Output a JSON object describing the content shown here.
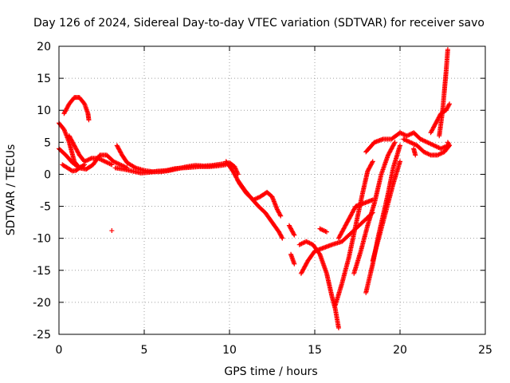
{
  "chart_data": {
    "type": "scatter",
    "title": "Day 126 of 2024, Sidereal Day-to-day VTEC variation (SDTVAR) for receiver savo",
    "xlabel": "GPS time / hours",
    "ylabel": "SDTVAR / TECUs",
    "xlim": [
      0,
      25
    ],
    "ylim": [
      -25,
      20
    ],
    "xticks": [
      "0",
      "5",
      "10",
      "15",
      "20",
      "25"
    ],
    "yticks": [
      "-25",
      "-20",
      "-15",
      "-10",
      "-5",
      "0",
      "5",
      "10",
      "15",
      "20"
    ],
    "grid": true,
    "marker": "plus",
    "color": "#ff0000",
    "series": [
      {
        "name": "arc-1",
        "points": [
          [
            0.0,
            8.0
          ],
          [
            0.3,
            7.0
          ],
          [
            0.6,
            5.0
          ],
          [
            0.9,
            2.0
          ],
          [
            1.2,
            1.0
          ],
          [
            1.5,
            1.5
          ]
        ]
      },
      {
        "name": "arc-2",
        "points": [
          [
            0.3,
            9.5
          ],
          [
            0.6,
            11.0
          ],
          [
            0.9,
            12.0
          ],
          [
            1.2,
            12.0
          ],
          [
            1.5,
            11.0
          ],
          [
            1.7,
            9.5
          ],
          [
            1.75,
            8.5
          ]
        ]
      },
      {
        "name": "arc-3",
        "points": [
          [
            0.0,
            4.0
          ],
          [
            0.4,
            3.0
          ],
          [
            0.8,
            1.8
          ],
          [
            1.2,
            1.0
          ],
          [
            1.6,
            0.8
          ],
          [
            2.0,
            1.5
          ],
          [
            2.4,
            3.0
          ],
          [
            2.8,
            3.0
          ],
          [
            3.2,
            2.0
          ],
          [
            3.6,
            1.5
          ],
          [
            4.0,
            1.0
          ]
        ]
      },
      {
        "name": "arc-4",
        "points": [
          [
            0.2,
            1.5
          ],
          [
            0.5,
            1.0
          ],
          [
            0.8,
            0.5
          ],
          [
            1.0,
            0.6
          ],
          [
            1.3,
            1.2
          ]
        ]
      },
      {
        "name": "arc-5",
        "points": [
          [
            0.6,
            6.0
          ],
          [
            0.9,
            4.5
          ],
          [
            1.2,
            3.0
          ],
          [
            1.5,
            2.0
          ],
          [
            1.9,
            2.5
          ],
          [
            2.3,
            2.5
          ],
          [
            2.7,
            2.0
          ],
          [
            3.1,
            1.5
          ]
        ]
      },
      {
        "name": "arc-6",
        "points": [
          [
            3.4,
            4.5
          ],
          [
            3.7,
            3.0
          ],
          [
            4.0,
            1.8
          ],
          [
            4.5,
            1.0
          ],
          [
            5.0,
            0.6
          ],
          [
            5.5,
            0.4
          ],
          [
            6.0,
            0.4
          ],
          [
            6.5,
            0.6
          ],
          [
            7.0,
            0.9
          ],
          [
            7.5,
            1.2
          ],
          [
            8.0,
            1.4
          ],
          [
            8.5,
            1.3
          ],
          [
            9.0,
            1.4
          ],
          [
            9.5,
            1.6
          ],
          [
            10.0,
            1.8
          ],
          [
            10.3,
            1.2
          ],
          [
            10.5,
            0.0
          ]
        ]
      },
      {
        "name": "arc-7",
        "points": [
          [
            3.3,
            1.0
          ],
          [
            3.8,
            0.8
          ],
          [
            4.3,
            0.5
          ],
          [
            4.8,
            0.2
          ],
          [
            5.3,
            0.3
          ],
          [
            5.8,
            0.5
          ],
          [
            6.3,
            0.6
          ],
          [
            6.8,
            0.9
          ],
          [
            7.3,
            1.0
          ],
          [
            7.8,
            1.1
          ],
          [
            8.3,
            1.2
          ],
          [
            8.8,
            1.2
          ],
          [
            9.3,
            1.3
          ],
          [
            9.8,
            1.5
          ]
        ]
      },
      {
        "name": "outlier",
        "points": [
          [
            3.1,
            -8.8
          ]
        ]
      },
      {
        "name": "arc-8",
        "points": [
          [
            9.8,
            2.0
          ],
          [
            10.2,
            0.5
          ],
          [
            10.6,
            -1.5
          ],
          [
            11.0,
            -3.0
          ],
          [
            11.4,
            -4.0
          ],
          [
            11.8,
            -3.5
          ],
          [
            12.2,
            -2.8
          ],
          [
            12.5,
            -3.5
          ],
          [
            12.8,
            -5.5
          ],
          [
            13.0,
            -6.5
          ]
        ]
      },
      {
        "name": "arc-9",
        "points": [
          [
            10.5,
            -1.0
          ],
          [
            10.9,
            -2.5
          ],
          [
            11.3,
            -3.8
          ],
          [
            11.7,
            -5.0
          ],
          [
            12.1,
            -6.0
          ],
          [
            12.5,
            -7.5
          ],
          [
            12.9,
            -9.0
          ],
          [
            13.1,
            -10.0
          ]
        ]
      },
      {
        "name": "arc-10",
        "points": [
          [
            13.5,
            -8.0
          ],
          [
            13.8,
            -9.5
          ]
        ]
      },
      {
        "name": "arc-11",
        "points": [
          [
            13.6,
            -12.5
          ],
          [
            13.8,
            -14.0
          ]
        ]
      },
      {
        "name": "arc-12",
        "points": [
          [
            14.1,
            -11.0
          ],
          [
            14.5,
            -10.5
          ],
          [
            14.9,
            -11.0
          ],
          [
            15.3,
            -12.5
          ],
          [
            15.7,
            -15.5
          ],
          [
            16.0,
            -19.0
          ],
          [
            16.2,
            -21.0
          ],
          [
            16.3,
            -22.5
          ],
          [
            16.4,
            -24.0
          ]
        ]
      },
      {
        "name": "arc-13",
        "points": [
          [
            14.2,
            -15.5
          ],
          [
            14.6,
            -13.5
          ],
          [
            15.0,
            -12.0
          ],
          [
            15.5,
            -11.5
          ],
          [
            16.0,
            -11.0
          ],
          [
            16.6,
            -10.5
          ],
          [
            17.2,
            -9.0
          ],
          [
            17.8,
            -7.5
          ],
          [
            18.4,
            -6.0
          ]
        ]
      },
      {
        "name": "arc-14",
        "points": [
          [
            15.3,
            -8.5
          ],
          [
            15.7,
            -9.0
          ]
        ]
      },
      {
        "name": "arc-15",
        "points": [
          [
            16.2,
            -20.5
          ],
          [
            16.6,
            -17.0
          ],
          [
            17.0,
            -13.0
          ],
          [
            17.4,
            -8.0
          ],
          [
            17.8,
            -3.0
          ],
          [
            18.1,
            0.5
          ],
          [
            18.4,
            2.0
          ]
        ]
      },
      {
        "name": "arc-16",
        "points": [
          [
            16.4,
            -10.0
          ],
          [
            16.9,
            -7.5
          ],
          [
            17.4,
            -5.0
          ],
          [
            17.9,
            -4.5
          ],
          [
            18.4,
            -4.0
          ]
        ]
      },
      {
        "name": "arc-17",
        "points": [
          [
            17.3,
            -15.5
          ],
          [
            17.7,
            -12.0
          ],
          [
            18.1,
            -8.0
          ],
          [
            18.5,
            -4.5
          ],
          [
            18.9,
            0.0
          ],
          [
            19.3,
            3.0
          ],
          [
            19.7,
            5.0
          ]
        ]
      },
      {
        "name": "arc-18",
        "points": [
          [
            18.0,
            -18.5
          ],
          [
            18.4,
            -14.0
          ],
          [
            18.7,
            -10.0
          ],
          [
            19.0,
            -6.5
          ],
          [
            19.3,
            -3.0
          ],
          [
            19.6,
            1.0
          ],
          [
            20.0,
            4.5
          ]
        ]
      },
      {
        "name": "arc-19",
        "points": [
          [
            18.4,
            -13.5
          ],
          [
            18.8,
            -9.5
          ],
          [
            19.2,
            -5.5
          ],
          [
            19.6,
            -1.5
          ],
          [
            20.0,
            2.0
          ]
        ]
      },
      {
        "name": "arc-20",
        "points": [
          [
            18.0,
            3.5
          ],
          [
            18.5,
            5.0
          ],
          [
            19.0,
            5.5
          ],
          [
            19.5,
            5.5
          ],
          [
            20.0,
            6.5
          ]
        ]
      },
      {
        "name": "arc-21",
        "points": [
          [
            20.0,
            6.5
          ],
          [
            20.4,
            6.0
          ],
          [
            20.8,
            6.5
          ],
          [
            21.2,
            5.5
          ],
          [
            21.6,
            5.0
          ],
          [
            22.0,
            4.5
          ],
          [
            22.4,
            4.0
          ],
          [
            22.8,
            4.5
          ]
        ]
      },
      {
        "name": "arc-22",
        "points": [
          [
            20.2,
            5.5
          ],
          [
            20.6,
            5.0
          ],
          [
            21.0,
            4.5
          ],
          [
            21.4,
            3.5
          ],
          [
            21.8,
            3.0
          ],
          [
            22.2,
            3.0
          ],
          [
            22.6,
            3.5
          ],
          [
            22.9,
            4.5
          ],
          [
            22.8,
            5.0
          ]
        ]
      },
      {
        "name": "arc-23",
        "points": [
          [
            21.8,
            6.5
          ],
          [
            22.1,
            8.0
          ],
          [
            22.4,
            9.5
          ],
          [
            22.7,
            10.0
          ],
          [
            22.9,
            11.0
          ]
        ]
      },
      {
        "name": "arc-24",
        "points": [
          [
            22.3,
            6.0
          ],
          [
            22.5,
            10.0
          ],
          [
            22.6,
            13.0
          ],
          [
            22.7,
            16.0
          ],
          [
            22.8,
            19.5
          ]
        ]
      },
      {
        "name": "arc-25",
        "points": [
          [
            20.8,
            4.0
          ],
          [
            20.9,
            3.0
          ]
        ]
      }
    ]
  }
}
